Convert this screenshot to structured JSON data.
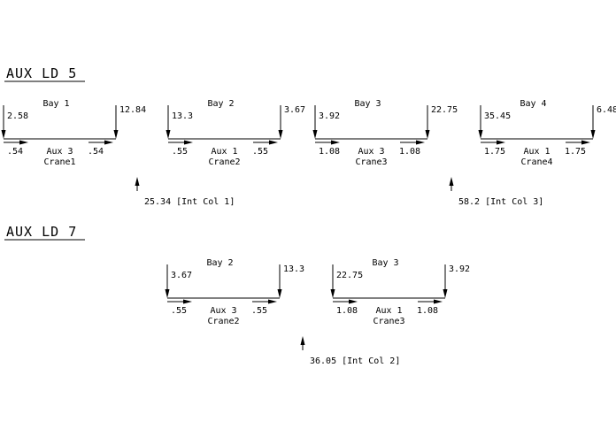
{
  "sections": [
    {
      "title": "AUX LD 5",
      "bays": [
        {
          "bay": "Bay 1",
          "left_load": "2.58",
          "right_load": "12.84",
          "left_val": ".54",
          "right_val": ".54",
          "aux": "Aux 3",
          "crane": "Crane1"
        },
        {
          "bay": "Bay 2",
          "left_load": "13.3",
          "right_load": "3.67",
          "left_val": ".55",
          "right_val": ".55",
          "aux": "Aux 1",
          "crane": "Crane2"
        },
        {
          "bay": "Bay 3",
          "left_load": "3.92",
          "right_load": "22.75",
          "left_val": "1.08",
          "right_val": "1.08",
          "aux": "Aux 3",
          "crane": "Crane3"
        },
        {
          "bay": "Bay 4",
          "left_load": "35.45",
          "right_load": "6.48",
          "left_val": "1.75",
          "right_val": "1.75",
          "aux": "Aux 1",
          "crane": "Crane4"
        }
      ],
      "reactions": [
        {
          "label": "25.34 [Int Col 1]"
        },
        {
          "label": "58.2 [Int Col 3]"
        }
      ]
    },
    {
      "title": "AUX LD 7",
      "bays": [
        {
          "bay": "Bay 2",
          "left_load": "3.67",
          "right_load": "13.3",
          "left_val": ".55",
          "right_val": ".55",
          "aux": "Aux 3",
          "crane": "Crane2"
        },
        {
          "bay": "Bay 3",
          "left_load": "22.75",
          "right_load": "3.92",
          "left_val": "1.08",
          "right_val": "1.08",
          "aux": "Aux 1",
          "crane": "Crane3"
        }
      ],
      "reactions": [
        {
          "label": "36.05 [Int Col 2]"
        }
      ]
    }
  ]
}
